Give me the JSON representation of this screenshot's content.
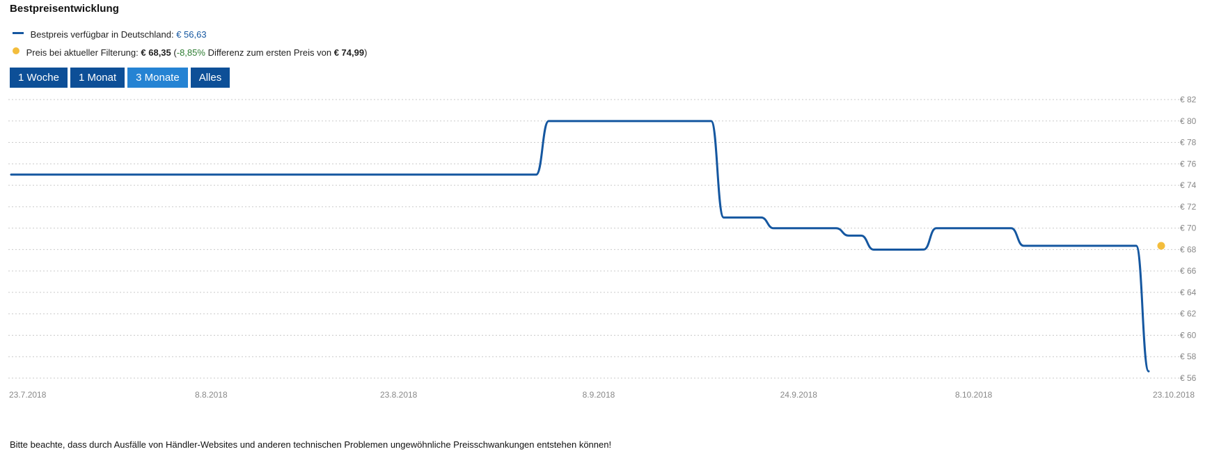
{
  "header": {
    "title": "Bestpreisentwicklung"
  },
  "legend": {
    "best_label": "Bestpreis verfügbar in Deutschland:",
    "best_value": "€ 56,63",
    "filter_label": "Preis bei aktueller Filterung:",
    "filter_value": "€ 68,35",
    "diff_open": "(",
    "diff_value": "-8,85%",
    "diff_text": "Differenz zum ersten Preis von",
    "first_price": "€ 74,99",
    "diff_close": ")"
  },
  "range_buttons": [
    {
      "label": "1 Woche",
      "active": false
    },
    {
      "label": "1 Monat",
      "active": false
    },
    {
      "label": "3 Monate",
      "active": true
    },
    {
      "label": "Alles",
      "active": false
    }
  ],
  "footer": {
    "note": "Bitte beachte, dass durch Ausfälle von Händler-Websites und anderen technischen Problemen ungewöhnliche Preisschwankungen entstehen können!"
  },
  "colors": {
    "line": "#1557a0",
    "current_marker": "#f3bd3c",
    "button": "#0d4f97",
    "button_active": "#2583d3"
  },
  "chart_data": {
    "type": "line",
    "title": "",
    "xlabel": "",
    "ylabel": "",
    "x_start": "2018-07-23",
    "x_end": "2018-10-23",
    "ylim": [
      56,
      82
    ],
    "y_ticks": [
      82,
      80,
      78,
      76,
      74,
      72,
      70,
      68,
      66,
      64,
      62,
      60,
      58,
      56
    ],
    "y_tick_labels": [
      "€ 82",
      "€ 80",
      "€ 78",
      "€ 76",
      "€ 74",
      "€ 72",
      "€ 70",
      "€ 68",
      "€ 66",
      "€ 64",
      "€ 62",
      "€ 60",
      "€ 58",
      "€ 56"
    ],
    "x_ticks": [
      "2018-07-23",
      "2018-08-08",
      "2018-08-23",
      "2018-09-08",
      "2018-09-24",
      "2018-10-08",
      "2018-10-23"
    ],
    "x_tick_labels": [
      "23.7.2018",
      "8.8.2018",
      "23.8.2018",
      "8.9.2018",
      "24.9.2018",
      "8.10.2018",
      "23.10.2018"
    ],
    "grid": true,
    "series": [
      {
        "values": [
          {
            "x": "2018-07-23",
            "y": 74.99
          },
          {
            "x": "2018-09-03",
            "y": 74.99
          },
          {
            "x": "2018-09-04",
            "y": 79.99
          },
          {
            "x": "2018-09-17",
            "y": 79.99
          },
          {
            "x": "2018-09-18",
            "y": 70.99
          },
          {
            "x": "2018-09-21",
            "y": 70.99
          },
          {
            "x": "2018-09-22",
            "y": 69.99
          },
          {
            "x": "2018-09-27",
            "y": 69.99
          },
          {
            "x": "2018-09-28",
            "y": 69.3
          },
          {
            "x": "2018-09-29",
            "y": 69.3
          },
          {
            "x": "2018-09-30",
            "y": 67.99
          },
          {
            "x": "2018-10-03",
            "y": 67.99
          },
          {
            "x": "2018-10-04",
            "y": 68.0
          },
          {
            "x": "2018-10-05",
            "y": 69.99
          },
          {
            "x": "2018-10-11",
            "y": 69.99
          },
          {
            "x": "2018-10-12",
            "y": 68.35
          },
          {
            "x": "2018-10-21",
            "y": 68.35
          },
          {
            "x": "2018-10-22",
            "y": 56.63
          }
        ]
      }
    ],
    "current_marker": {
      "x": "2018-10-23",
      "y": 68.35
    }
  }
}
